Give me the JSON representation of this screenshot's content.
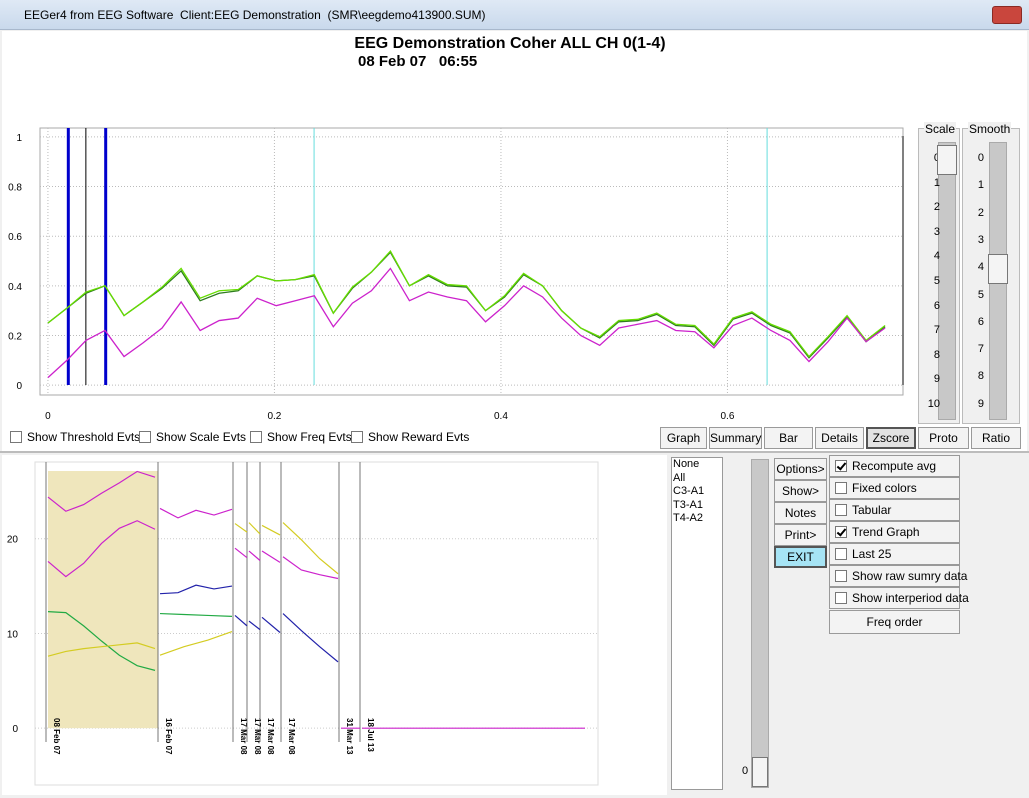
{
  "window": {
    "title": "EEGer4 from EEG Software  Client:EEG Demonstration  (SMR\\eegdemo413900.SUM)"
  },
  "chart_data": [
    {
      "type": "line",
      "title": "EEG Demonstration Coher ALL CH 0(1-4)",
      "subtitle": "08 Feb 07   06:55",
      "x": [
        0,
        0.0168,
        0.0336,
        0.0504,
        0.0672,
        0.084,
        0.1008,
        0.1176,
        0.1344,
        0.1512,
        0.168,
        0.1848,
        0.2016,
        0.2184,
        0.2352,
        0.252,
        0.2688,
        0.2856,
        0.3024,
        0.3192,
        0.336,
        0.3528,
        0.3696,
        0.3864,
        0.4032,
        0.42,
        0.4368,
        0.4536,
        0.4704,
        0.4872,
        0.504,
        0.5208,
        0.5376,
        0.5544,
        0.5712,
        0.588,
        0.6048,
        0.6216,
        0.6384,
        0.6552,
        0.672,
        0.6888,
        0.7056,
        0.7224,
        0.7392
      ],
      "series": [
        {
          "color": "#2e7d1e",
          "values": [
            0.25,
            0.31,
            0.37,
            0.4,
            0.28,
            0.335,
            0.39,
            0.46,
            0.34,
            0.37,
            0.38,
            0.44,
            0.42,
            0.425,
            0.44,
            0.29,
            0.39,
            0.455,
            0.535,
            0.4,
            0.44,
            0.4,
            0.395,
            0.3,
            0.355,
            0.445,
            0.4,
            0.3,
            0.23,
            0.19,
            0.255,
            0.26,
            0.285,
            0.24,
            0.235,
            0.16,
            0.265,
            0.29,
            0.24,
            0.21,
            0.11,
            0.19,
            0.275,
            0.175,
            0.235
          ]
        },
        {
          "color": "#66dd00",
          "values": [
            0.25,
            0.31,
            0.375,
            0.4,
            0.28,
            0.335,
            0.395,
            0.47,
            0.35,
            0.38,
            0.385,
            0.44,
            0.42,
            0.425,
            0.445,
            0.29,
            0.395,
            0.455,
            0.54,
            0.4,
            0.445,
            0.405,
            0.4,
            0.3,
            0.36,
            0.45,
            0.4,
            0.3,
            0.23,
            0.195,
            0.26,
            0.265,
            0.29,
            0.245,
            0.24,
            0.165,
            0.27,
            0.295,
            0.245,
            0.215,
            0.115,
            0.195,
            0.28,
            0.18,
            0.24
          ]
        },
        {
          "color": "#cc22cc",
          "values": [
            0.03,
            0.1,
            0.18,
            0.22,
            0.115,
            0.17,
            0.23,
            0.335,
            0.22,
            0.26,
            0.27,
            0.35,
            0.32,
            0.34,
            0.36,
            0.235,
            0.33,
            0.38,
            0.47,
            0.34,
            0.375,
            0.355,
            0.34,
            0.255,
            0.32,
            0.4,
            0.355,
            0.27,
            0.2,
            0.16,
            0.23,
            0.245,
            0.26,
            0.22,
            0.215,
            0.15,
            0.24,
            0.27,
            0.22,
            0.18,
            0.095,
            0.175,
            0.27,
            0.175,
            0.23
          ]
        }
      ],
      "markers": [
        {
          "x": 0.018,
          "color": "#0000cc"
        },
        {
          "x": 0.0335,
          "color": "#000000"
        },
        {
          "x": 0.051,
          "color": "#0000cc"
        },
        {
          "x": 0.235,
          "color": "#66dddd"
        },
        {
          "x": 0.635,
          "color": "#66dddd"
        }
      ],
      "xlim": [
        -0.007,
        0.755
      ],
      "ylim": [
        -0.04,
        1.036
      ],
      "xticks": [
        0,
        0.2,
        0.4,
        0.6
      ],
      "yticks": [
        0,
        0.2,
        0.4,
        0.6,
        0.8,
        1
      ],
      "grid": true
    },
    {
      "type": "line",
      "categories": [
        "08 Feb 07",
        "16 Feb 07",
        "17 Mar 08",
        "17 Mar 08",
        "17 Mar 08",
        "17 Mar 08",
        "31 Mar 13",
        "18 Jul 13"
      ],
      "highlight": 0,
      "highlight_color": "#efe6bc",
      "series": [
        {
          "color": "#cc22cc",
          "values": [
            [
              24.4,
              22.9,
              23.6,
              24.8,
              25.9,
              27.1,
              26.5
            ],
            [
              23.2,
              22.2,
              23.0,
              22.5,
              23.1
            ],
            null,
            null,
            null,
            null,
            null,
            null
          ]
        },
        {
          "color": "#cc22cc",
          "values": [
            [
              17.6,
              16.0,
              17.4,
              19.5,
              21.1,
              21.9,
              21.0
            ],
            null,
            [
              19.0,
              18.0
            ],
            [
              18.7,
              17.7
            ],
            [
              18.7,
              17.5
            ],
            [
              18.1,
              16.7,
              16.2,
              15.8
            ],
            null,
            null
          ]
        },
        {
          "color": "#22aa44",
          "values": [
            [
              12.3,
              12.2,
              10.8,
              9.2,
              7.7,
              6.6,
              6.1
            ],
            [
              12.1,
              12.0,
              11.9,
              11.8
            ],
            null,
            null,
            null,
            null,
            null,
            null
          ]
        },
        {
          "color": "#d4cc22",
          "values": [
            [
              7.6,
              8.1,
              8.4,
              8.6,
              8.8,
              9.0,
              8.4
            ],
            [
              7.7,
              8.6,
              9.3,
              10.2
            ],
            [
              21.6,
              20.7
            ],
            [
              21.7,
              20.5
            ],
            [
              21.4,
              20.4
            ],
            [
              21.7,
              19.9,
              17.9,
              16.3
            ],
            null,
            null
          ]
        },
        {
          "color": "#2222aa",
          "values": [
            null,
            [
              14.2,
              14.3,
              15.1,
              14.7,
              15.0
            ],
            [
              11.9,
              10.8
            ],
            [
              11.3,
              10.4
            ],
            [
              11.7,
              10.1
            ],
            [
              12.1,
              10.3,
              8.6,
              7.0
            ],
            null,
            null
          ]
        },
        {
          "color": "#cc22cc",
          "values": [
            null,
            null,
            null,
            null,
            null,
            null,
            [
              0,
              0
            ],
            [
              0,
              0
            ]
          ]
        }
      ],
      "ylim": [
        -6,
        28.1
      ],
      "yticks": [
        0,
        10,
        20
      ],
      "grid": true
    }
  ],
  "event_checkboxes": [
    "Show Threshold Evts",
    "Show Scale Evts",
    "Show Freq Evts",
    "Show Reward Evts"
  ],
  "view_buttons": [
    "Graph",
    "Summary",
    "Bar",
    "Details",
    "Zscore",
    "Proto",
    "Ratio"
  ],
  "scale": {
    "label": "Scale",
    "ticks": [
      0,
      1,
      2,
      3,
      4,
      5,
      6,
      7,
      8,
      9,
      10
    ],
    "value": 0
  },
  "smooth": {
    "label": "Smooth",
    "ticks": [
      0,
      1,
      2,
      3,
      4,
      5,
      6,
      7,
      8,
      9
    ],
    "value": 4
  },
  "channel_list": [
    "None",
    "All",
    "C3-A1",
    "T3-A1",
    "T4-A2"
  ],
  "side_slider_value": 0,
  "action_buttons": [
    "Options>",
    "Show>",
    "Notes",
    "Print>",
    "EXIT"
  ],
  "options": [
    {
      "label": "Recompute avg",
      "checked": true
    },
    {
      "label": "Fixed colors",
      "checked": false
    },
    {
      "label": "Tabular",
      "checked": false
    },
    {
      "label": "Trend Graph",
      "checked": true
    },
    {
      "label": "Last 25",
      "checked": false
    },
    {
      "label": "Show raw sumry data",
      "checked": false
    },
    {
      "label": "Show interperiod data",
      "checked": false
    }
  ],
  "freq_order": "Freq order"
}
